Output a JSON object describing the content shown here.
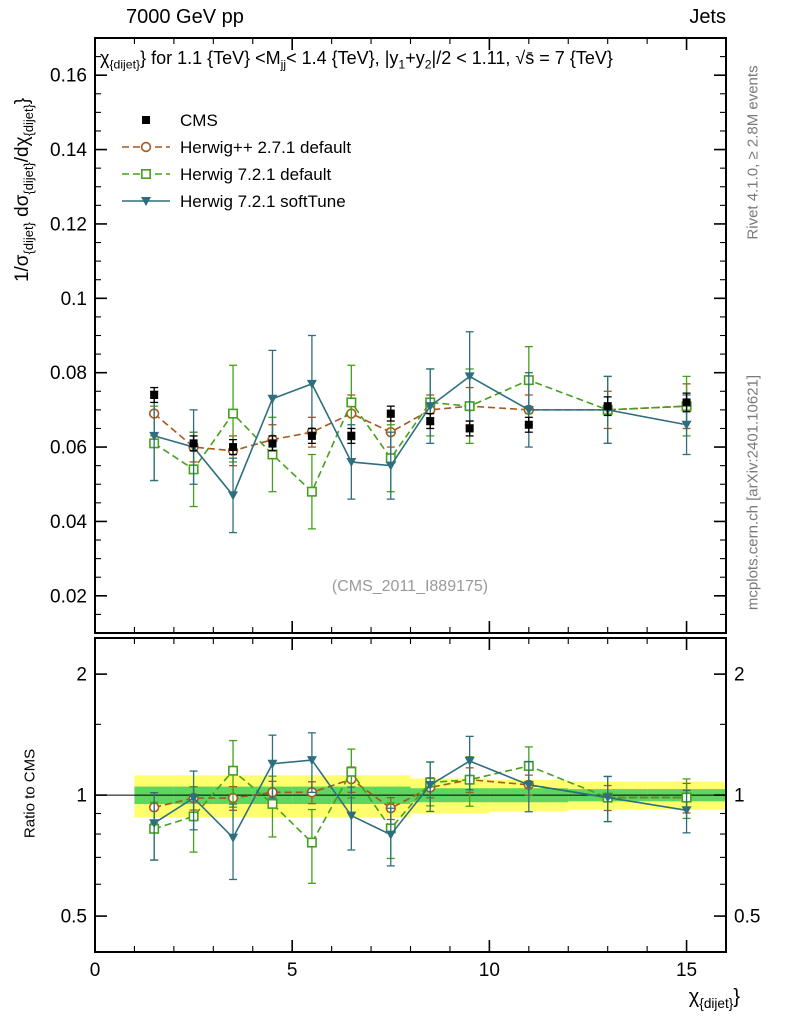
{
  "header": {
    "left": "7000 GeV pp",
    "right": "Jets"
  },
  "side_texts": {
    "top_right": "Rivet 4.1.0, ≥ 2.8M events",
    "bottom_right": "mcplots.cern.ch [arXiv:2401.10621]"
  },
  "labels": {
    "watermark": "(CMS_2011_I889175)",
    "ratio_ylabel": "Ratio to CMS",
    "title_segments": [
      {
        "t": "χ"
      },
      {
        "s": "{dijet}"
      },
      {
        "t": "} for 1.1 {TeV} <M"
      },
      {
        "s": "jj"
      },
      {
        "t": "< 1.4 {TeV}, |y"
      },
      {
        "s": "1"
      },
      {
        "t": "+y"
      },
      {
        "s": "2"
      },
      {
        "t": "|/2 < 1.11, √s̄ = 7 {TeV}"
      }
    ],
    "ylabel_segments": [
      {
        "t": "1/σ"
      },
      {
        "s": "{dijet}"
      },
      {
        "t": " dσ"
      },
      {
        "s": "{dijet}"
      },
      {
        "t": "/dχ"
      },
      {
        "s": "{dijet}"
      },
      {
        "t": "}"
      }
    ],
    "xlabel_segments": [
      {
        "t": "χ"
      },
      {
        "s": "{dijet}"
      },
      {
        "t": "}"
      }
    ]
  },
  "chart_data": {
    "type": "line",
    "subtype": "points with error bars; two panels (main distribution + ratio to data)",
    "title": "χ_{dijet} for 1.1 TeV < M_jj < 1.4 TeV, |y_1+y_2|/2 < 1.11, √s = 7 TeV",
    "xlabel": "χ_{dijet}",
    "ylabel": "1/σ_{dijet} dσ_{dijet}/dχ_{dijet}",
    "ratio_label": "Ratio to CMS",
    "legend_position": "top-left",
    "x": [
      1.5,
      2.5,
      3.5,
      4.5,
      5.5,
      6.5,
      7.5,
      8.5,
      9.5,
      11,
      13,
      15
    ],
    "xlim": [
      0,
      16
    ],
    "xticks": [
      0,
      5,
      10,
      15
    ],
    "x_minor_step": 1,
    "main_axis": {
      "ylim": [
        0.01,
        0.17
      ],
      "yticks": [
        0.02,
        0.04,
        0.06,
        0.08,
        0.1,
        0.12,
        0.14,
        0.16
      ],
      "y_minor_step": 0.005
    },
    "ratio_axis": {
      "scale": "log",
      "ylim": [
        0.407,
        2.46
      ],
      "yticks": [
        0.5,
        1,
        2
      ],
      "yminor": [
        0.6,
        0.7,
        0.8,
        0.9,
        1.5
      ]
    },
    "series": [
      {
        "name": "CMS",
        "marker": "filled-square",
        "line": "none",
        "color": "#000000",
        "values": [
          0.074,
          0.061,
          0.06,
          0.061,
          0.063,
          0.063,
          0.069,
          0.067,
          0.065,
          0.066,
          0.071,
          0.072
        ],
        "errors": [
          0.002,
          0.002,
          0.002,
          0.002,
          0.002,
          0.002,
          0.002,
          0.002,
          0.002,
          0.002,
          0.0025,
          0.0025
        ]
      },
      {
        "name": "Herwig++ 2.7.1 default",
        "marker": "open-circle",
        "line": "dashed",
        "color": "#a8571e",
        "values": [
          0.069,
          0.06,
          0.059,
          0.062,
          0.064,
          0.069,
          0.064,
          0.07,
          0.071,
          0.07,
          0.07,
          0.071
        ],
        "errors": [
          0.006,
          0.004,
          0.004,
          0.004,
          0.004,
          0.005,
          0.004,
          0.004,
          0.005,
          0.004,
          0.005,
          0.006
        ]
      },
      {
        "name": "Herwig 7.2.1 default",
        "marker": "open-square",
        "line": "dashed",
        "color": "#44a11d",
        "values": [
          0.061,
          0.054,
          0.069,
          0.058,
          0.048,
          0.072,
          0.057,
          0.072,
          0.071,
          0.078,
          0.07,
          0.071
        ],
        "errors": [
          0.01,
          0.01,
          0.013,
          0.01,
          0.01,
          0.01,
          0.009,
          0.009,
          0.01,
          0.009,
          0.009,
          0.008
        ]
      },
      {
        "name": "Herwig 7.2.1 softTune",
        "marker": "filled-triangle-down",
        "line": "solid",
        "color": "#2e6f7f",
        "values": [
          0.063,
          0.06,
          0.047,
          0.073,
          0.077,
          0.056,
          0.055,
          0.071,
          0.079,
          0.07,
          0.07,
          0.066
        ],
        "errors": [
          0.012,
          0.01,
          0.01,
          0.013,
          0.013,
          0.01,
          0.009,
          0.01,
          0.012,
          0.01,
          0.009,
          0.008
        ]
      }
    ],
    "ratio_bands": {
      "bins": [
        [
          1,
          2
        ],
        [
          2,
          3
        ],
        [
          3,
          4
        ],
        [
          4,
          5
        ],
        [
          5,
          6
        ],
        [
          6,
          7
        ],
        [
          7,
          8
        ],
        [
          8,
          9
        ],
        [
          9,
          10
        ],
        [
          10,
          12
        ],
        [
          12,
          14
        ],
        [
          14,
          16
        ]
      ],
      "yellow_halfwidth": [
        0.12,
        0.12,
        0.12,
        0.12,
        0.12,
        0.12,
        0.12,
        0.1,
        0.1,
        0.09,
        0.08,
        0.08
      ],
      "green_halfwidth": [
        0.05,
        0.05,
        0.05,
        0.05,
        0.05,
        0.05,
        0.05,
        0.04,
        0.04,
        0.04,
        0.035,
        0.035
      ],
      "yellow_color": "#ffff6e",
      "green_color": "#5cd65c"
    }
  }
}
